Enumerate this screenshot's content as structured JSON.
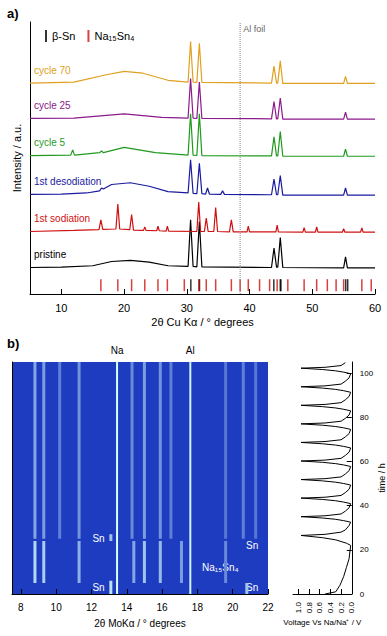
{
  "chart_data": [
    {
      "type": "line",
      "title": "a)",
      "xlabel": "2θ Cu Kα / ° degrees",
      "ylabel": "Intensity / a.u.",
      "xlim": [
        5,
        60
      ],
      "xticks": [
        10,
        20,
        30,
        40,
        50,
        60
      ],
      "ylim": [
        -0.5,
        7.2
      ],
      "tick_labels": "x",
      "grid": false,
      "legend": "upper left",
      "series": [
        {
          "name": "pristine",
          "color": "#000000",
          "x": [
            5,
            10,
            15,
            18,
            21,
            24,
            27,
            30.2,
            30.6,
            31.0,
            31.6,
            32.0,
            32.4,
            43.5,
            43.9,
            44.3,
            44.5,
            44.9,
            45.3,
            55.0,
            55.3,
            55.6,
            60
          ],
          "values": [
            0.25,
            0.26,
            0.3,
            0.42,
            0.45,
            0.4,
            0.3,
            0.28,
            1.6,
            0.28,
            0.27,
            1.55,
            0.27,
            0.25,
            0.8,
            0.26,
            0.26,
            1.1,
            0.25,
            0.24,
            0.55,
            0.24,
            0.24
          ]
        },
        {
          "name": "1st sodiation",
          "color": "#d01010",
          "x": [
            5,
            12,
            16.0,
            16.3,
            16.6,
            18.7,
            19.0,
            19.3,
            20.9,
            21.2,
            21.5,
            23.1,
            23.3,
            23.5,
            25.2,
            25.4,
            25.6,
            26.7,
            26.9,
            27.1,
            31.6,
            31.9,
            32.2,
            32.8,
            33.1,
            33.4,
            34.3,
            34.6,
            34.9,
            36.8,
            37.1,
            37.4,
            39.6,
            39.8,
            40.0,
            44.2,
            44.4,
            44.6,
            48.5,
            48.7,
            48.9,
            50.5,
            50.7,
            50.9,
            54.8,
            55.0,
            55.2,
            57.7,
            57.9,
            58.1,
            60
          ],
          "values": [
            1.27,
            1.3,
            1.32,
            1.6,
            1.33,
            1.34,
            2.05,
            1.34,
            1.32,
            1.75,
            1.31,
            1.3,
            1.4,
            1.3,
            1.29,
            1.42,
            1.29,
            1.28,
            1.42,
            1.28,
            1.27,
            2.1,
            1.27,
            1.27,
            1.65,
            1.27,
            1.27,
            1.95,
            1.27,
            1.26,
            1.6,
            1.26,
            1.26,
            1.42,
            1.26,
            1.26,
            1.45,
            1.26,
            1.25,
            1.38,
            1.25,
            1.25,
            1.4,
            1.25,
            1.25,
            1.35,
            1.25,
            1.25,
            1.37,
            1.25,
            1.25
          ]
        },
        {
          "name": "1st desodiation",
          "color": "#1a1aa0",
          "x": [
            5,
            10,
            14,
            16.1,
            16.4,
            16.7,
            18,
            21,
            24,
            27,
            30.2,
            30.6,
            31.0,
            31.6,
            32.0,
            32.4,
            33.0,
            33.3,
            33.6,
            35.4,
            35.7,
            36.0,
            43.5,
            43.9,
            44.3,
            44.5,
            44.9,
            45.3,
            55.0,
            55.3,
            55.6,
            60
          ],
          "values": [
            2.32,
            2.33,
            2.36,
            2.42,
            2.5,
            2.47,
            2.6,
            2.65,
            2.55,
            2.4,
            2.36,
            3.3,
            2.35,
            2.34,
            3.2,
            2.34,
            2.33,
            2.5,
            2.33,
            2.32,
            2.42,
            2.32,
            2.31,
            2.75,
            2.31,
            2.31,
            2.85,
            2.3,
            2.3,
            2.5,
            2.3,
            2.3
          ]
        },
        {
          "name": "cycle 5",
          "color": "#1f9a1f",
          "x": [
            5,
            11.5,
            11.8,
            12.1,
            16.1,
            16.4,
            16.7,
            20,
            25,
            30.2,
            30.6,
            31.0,
            31.6,
            32.0,
            32.4,
            43.5,
            43.9,
            44.3,
            44.5,
            44.9,
            45.3,
            55.0,
            55.3,
            55.6,
            60
          ],
          "values": [
            3.42,
            3.43,
            3.58,
            3.43,
            3.5,
            3.55,
            3.5,
            3.65,
            3.5,
            3.43,
            4.6,
            3.43,
            3.42,
            4.6,
            3.42,
            3.41,
            3.95,
            3.41,
            3.41,
            4.1,
            3.4,
            3.4,
            3.6,
            3.4,
            3.4
          ]
        },
        {
          "name": "cycle 25",
          "color": "#8b1a8b",
          "x": [
            5,
            12,
            20,
            26,
            30.2,
            30.6,
            31.0,
            31.6,
            32.0,
            32.4,
            43.5,
            43.9,
            44.3,
            44.5,
            44.9,
            45.3,
            55.0,
            55.3,
            55.6,
            60
          ],
          "values": [
            4.47,
            4.48,
            4.6,
            4.5,
            4.48,
            5.6,
            4.48,
            4.47,
            5.5,
            4.47,
            4.46,
            4.95,
            4.46,
            4.46,
            5.05,
            4.45,
            4.45,
            4.65,
            4.45,
            4.45
          ]
        },
        {
          "name": "cycle 70",
          "color": "#e0a020",
          "x": [
            5,
            12,
            17,
            20,
            23,
            27,
            30.2,
            30.6,
            31.0,
            31.6,
            32.0,
            32.4,
            43.5,
            43.9,
            44.3,
            44.5,
            44.9,
            45.3,
            55.0,
            55.3,
            55.6,
            60
          ],
          "values": [
            5.47,
            5.5,
            5.7,
            5.8,
            5.75,
            5.55,
            5.5,
            6.65,
            5.5,
            5.49,
            6.6,
            5.49,
            5.47,
            5.95,
            5.47,
            5.47,
            6.1,
            5.46,
            5.46,
            5.66,
            5.46,
            5.46
          ]
        },
        {
          "name": "β-Sn",
          "type": "reference",
          "marker": "tick",
          "color": "#000000",
          "x": [
            30.64,
            32.02,
            43.87,
            44.9,
            45.0,
            55.33,
            55.65
          ],
          "values": [
            -0.25,
            -0.25,
            -0.25,
            -0.25,
            -0.25,
            -0.25,
            -0.25
          ]
        },
        {
          "name": "Na₁₅Sn₄",
          "type": "reference",
          "marker": "tick",
          "color": "#d01010",
          "x": [
            16.3,
            19.0,
            21.2,
            23.3,
            25.4,
            26.9,
            29.6,
            31.9,
            33.1,
            34.6,
            37.1,
            38.5,
            39.8,
            41.6,
            43.2,
            44.4,
            46.1,
            48.7,
            50.7,
            52.4,
            53.8,
            55.0,
            57.9,
            59.4
          ],
          "values": [
            -0.25,
            -0.25,
            -0.25,
            -0.25,
            -0.25,
            -0.25,
            -0.25,
            -0.25,
            -0.25,
            -0.25,
            -0.25,
            -0.25,
            -0.25,
            -0.25,
            -0.25,
            -0.25,
            -0.25,
            -0.25,
            -0.25,
            -0.25,
            -0.25,
            -0.25,
            -0.25,
            -0.25
          ]
        }
      ],
      "annotations": [
        {
          "text": "Al foil",
          "x": 38.5
        }
      ]
    },
    {
      "type": "image",
      "title": "b)",
      "xlabel": "2θ MoKα / ° degrees",
      "xlim": [
        7.5,
        22
      ],
      "xticks": [
        8,
        10,
        12,
        14,
        16,
        18,
        20,
        22
      ],
      "ylim": [
        0,
        105
      ],
      "tick_labels": "x",
      "grid": false,
      "color": "#1e3cc0",
      "streaks": [
        {
          "x": 8.8,
          "t": [
            25,
            105
          ],
          "level": 0.55
        },
        {
          "x": 9.3,
          "t": [
            25,
            105
          ],
          "level": 0.5
        },
        {
          "x": 10.2,
          "t": [
            25,
            105
          ],
          "level": 0.35
        },
        {
          "x": 11.3,
          "t": [
            25,
            105
          ],
          "level": 0.45
        },
        {
          "x": 14.3,
          "t": [
            25,
            105
          ],
          "level": 0.4
        },
        {
          "x": 15.0,
          "t": [
            25,
            105
          ],
          "level": 0.5
        },
        {
          "x": 15.9,
          "t": [
            25,
            105
          ],
          "level": 0.45
        },
        {
          "x": 16.5,
          "t": [
            25,
            105
          ],
          "level": 0.35
        },
        {
          "x": 19.6,
          "t": [
            25,
            105
          ],
          "level": 0.3
        },
        {
          "x": 20.6,
          "t": [
            25,
            105
          ],
          "level": 0.35
        },
        {
          "x": 21.3,
          "t": [
            25,
            105
          ],
          "level": 0.3
        },
        {
          "x": 8.8,
          "t": [
            5,
            24
          ],
          "level": 0.8
        },
        {
          "x": 9.3,
          "t": [
            5,
            24
          ],
          "level": 0.75
        },
        {
          "x": 11.3,
          "t": [
            5,
            24
          ],
          "level": 0.6
        },
        {
          "x": 14.4,
          "t": [
            5,
            24
          ],
          "level": 0.55
        },
        {
          "x": 15.0,
          "t": [
            5,
            24
          ],
          "level": 0.7
        },
        {
          "x": 15.9,
          "t": [
            5,
            24
          ],
          "level": 0.65
        },
        {
          "x": 17.1,
          "t": [
            5,
            24
          ],
          "level": 0.5
        },
        {
          "x": 19.6,
          "t": [
            5,
            24
          ],
          "level": 0.4
        },
        {
          "x": 13.1,
          "t": [
            0,
            6
          ],
          "level": 0.85
        },
        {
          "x": 20.8,
          "t": [
            0,
            5
          ],
          "level": 0.7
        },
        {
          "x": 13.1,
          "t": [
            24,
            27
          ],
          "level": 0.7
        },
        {
          "x": 13.45,
          "t": [
            0,
            105
          ],
          "level": 1.0
        },
        {
          "x": 17.6,
          "t": [
            0,
            105
          ],
          "level": 0.95
        }
      ],
      "annotations": [
        {
          "text": "Na",
          "x": 13.45,
          "y": 108
        },
        {
          "text": "Al",
          "x": 17.6,
          "y": 108
        },
        {
          "text": "Na₁₅Sn₄",
          "x": 19.3,
          "y": 12
        },
        {
          "text": "Sn",
          "x": 12.4,
          "y": 25
        },
        {
          "text": "Sn",
          "x": 12.4,
          "y": 3
        },
        {
          "text": "Sn",
          "x": 21.1,
          "y": 22
        },
        {
          "text": "Sn",
          "x": 21.1,
          "y": 3
        }
      ]
    },
    {
      "type": "line",
      "xlabel": "Voltage Vs Na/Na⁺ / V",
      "ylabel": "time / h",
      "xlim": [
        1.1,
        0
      ],
      "xticks": [
        {
          "value": 0,
          "label": "0.0"
        },
        0.2,
        0.4,
        0.6,
        0.8,
        {
          "value": 1,
          "label": "1.0"
        }
      ],
      "ylim": [
        0,
        105
      ],
      "yticks": [
        0,
        20,
        40,
        60,
        80,
        100
      ],
      "grid": false,
      "color": "#000000",
      "x": [
        0.5,
        0.3,
        0.22,
        0.15,
        0.1,
        0.05,
        0.02,
        0.1,
        0.3,
        0.55,
        0.95,
        0.5,
        0.2,
        0.12,
        0.05,
        0.02,
        0.15,
        0.3,
        0.55,
        0.95,
        0.5,
        0.2,
        0.12,
        0.05,
        0.02,
        0.15,
        0.3,
        0.55,
        0.95,
        0.5,
        0.2,
        0.12,
        0.05,
        0.02,
        0.15,
        0.3,
        0.55,
        0.95,
        0.5,
        0.2,
        0.12,
        0.05,
        0.02,
        0.15,
        0.3,
        0.55,
        0.95,
        0.5,
        0.2,
        0.12,
        0.05,
        0.02,
        0.15,
        0.3,
        0.55,
        0.95,
        0.5,
        0.2,
        0.12,
        0.05,
        0.02,
        0.15,
        0.3,
        0.55,
        0.95,
        0.5,
        0.2,
        0.12,
        0.05,
        0.02,
        0.15,
        0.3,
        0.55,
        0.95,
        0.5,
        0.2,
        0.12,
        0.05,
        0.02,
        0.15,
        0.3,
        0.55,
        0.95,
        0.5,
        0.2,
        0.12,
        0.05,
        0.02,
        0.15,
        0.3,
        0.55,
        0.95,
        0.5,
        0.2,
        0.12
      ],
      "y": [
        0,
        1,
        4,
        8,
        12,
        16,
        22,
        23,
        24.5,
        25.5,
        26.5,
        27,
        28,
        29,
        31,
        32.5,
        33.2,
        33.8,
        34.4,
        35,
        35.4,
        36.2,
        37.5,
        39,
        40.9,
        41.6,
        42.2,
        42.8,
        43.4,
        43.8,
        44.6,
        45.9,
        47.4,
        49.3,
        50,
        50.6,
        51.2,
        51.8,
        52.2,
        53,
        54.3,
        55.8,
        57.7,
        58.4,
        59,
        59.6,
        60.2,
        60.6,
        61.4,
        62.7,
        64.2,
        66.1,
        66.8,
        67.4,
        68,
        68.6,
        69,
        69.8,
        71.1,
        72.6,
        74.5,
        75.2,
        75.8,
        76.4,
        77,
        77.4,
        78.2,
        79.5,
        81,
        82.9,
        83.6,
        84.2,
        84.8,
        85.4,
        85.8,
        86.6,
        87.9,
        89.4,
        91.3,
        92,
        92.6,
        93.2,
        93.8,
        94.2,
        95,
        96.3,
        97.8,
        99.7,
        100.4,
        101,
        101.6,
        102.2,
        102.6,
        103.4,
        104.7
      ]
    }
  ]
}
